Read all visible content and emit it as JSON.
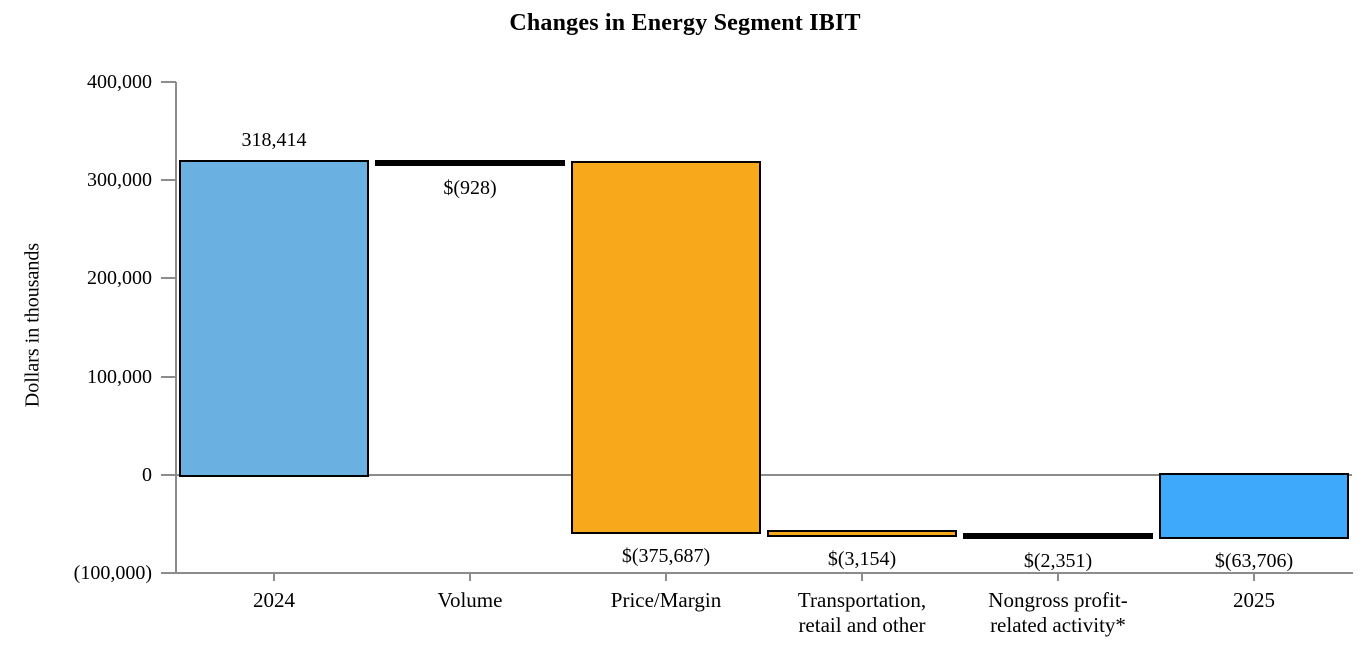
{
  "chart_data": {
    "type": "bar",
    "variant": "waterfall",
    "title": "Changes in Energy Segment IBIT",
    "ylabel": "Dollars in thousands",
    "xlabel": "",
    "ylim": [
      -100000,
      400000
    ],
    "grid": "zero-baseline only, left and bottom axes, no legend",
    "yticks": [
      {
        "value": 400000,
        "label": "400,000"
      },
      {
        "value": 300000,
        "label": "300,000"
      },
      {
        "value": 200000,
        "label": "200,000"
      },
      {
        "value": 100000,
        "label": "100,000"
      },
      {
        "value": 0,
        "label": "0"
      },
      {
        "value": -100000,
        "label": "(100,000)"
      }
    ],
    "categories": [
      "2024",
      "Volume",
      "Price/Margin",
      "Transportation, retail and other",
      "Nongross profit-related activity*",
      "2025"
    ],
    "bars": [
      {
        "category": "2024",
        "category_lines": [
          "2024"
        ],
        "data_label": "318,414",
        "label_position": "above",
        "value": 318414,
        "start": 0,
        "end": 318414,
        "fill": "#6AB0E0",
        "border": "#000000"
      },
      {
        "category": "Volume",
        "category_lines": [
          "Volume"
        ],
        "data_label": "$(928)",
        "label_position": "below",
        "value": -928,
        "start": 318414,
        "end": 317486,
        "fill": "#000000",
        "border": "#000000"
      },
      {
        "category": "Price/Margin",
        "category_lines": [
          "Price/Margin"
        ],
        "data_label": "$(375,687)",
        "label_position": "below",
        "value": -375687,
        "start": 317486,
        "end": -58201,
        "fill": "#F7A91B",
        "border": "#000000"
      },
      {
        "category": "Transportation, retail and other",
        "category_lines": [
          "Transportation,",
          "retail and other"
        ],
        "data_label": "$(3,154)",
        "label_position": "below",
        "value": -3154,
        "start": -58201,
        "end": -61355,
        "fill": "#F7A91B",
        "border": "#000000"
      },
      {
        "category": "Nongross profit-related activity*",
        "category_lines": [
          "Nongross profit-",
          "related activity*"
        ],
        "data_label": "$(2,351)",
        "label_position": "below",
        "value": -2351,
        "start": -61355,
        "end": -63706,
        "fill": "#000000",
        "border": "#000000"
      },
      {
        "category": "2025",
        "category_lines": [
          "2025"
        ],
        "data_label": "$(63,706)",
        "label_position": "below",
        "value": -63706,
        "start": 0,
        "end": -63706,
        "fill": "#3EA8FA",
        "border": "#000000"
      }
    ],
    "colors": {
      "start_total_bar": "#6AB0E0",
      "end_total_bar": "#3EA8FA",
      "decrease_bar": "#F7A91B",
      "thin_connector_bar": "#000000",
      "axis": "#8C8C8C",
      "text": "#000000",
      "background": "#FFFFFF"
    }
  }
}
